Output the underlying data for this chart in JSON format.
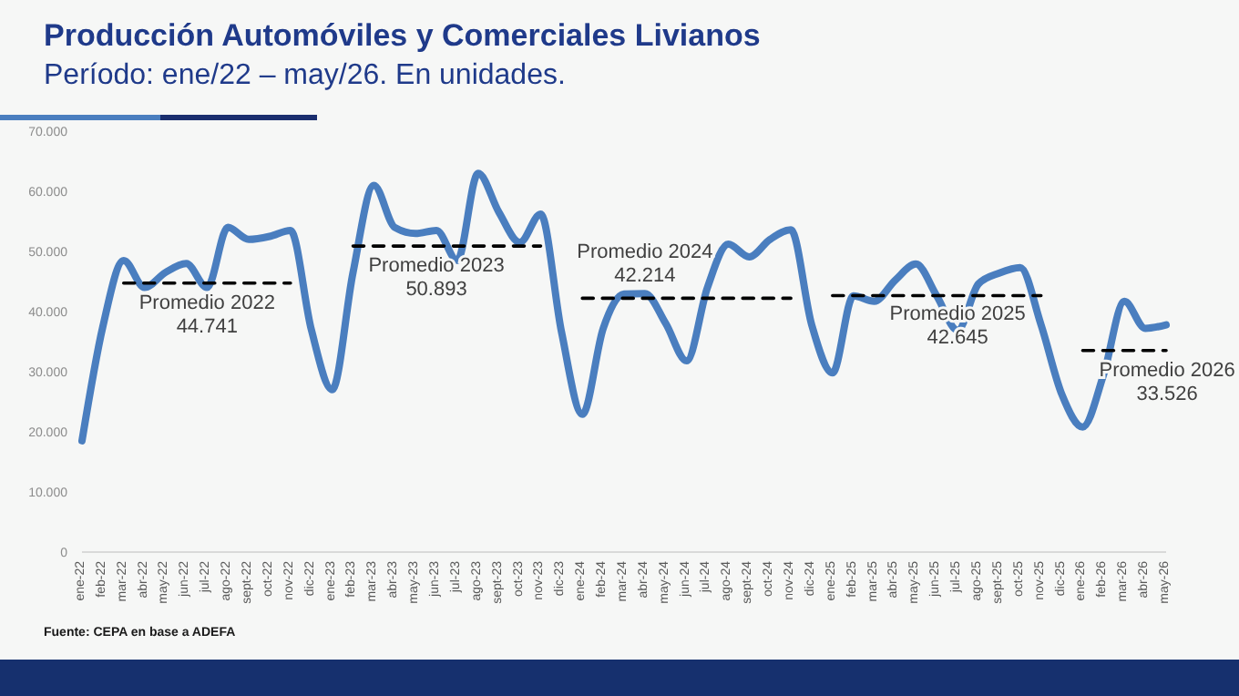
{
  "chart_data": {
    "type": "line",
    "title": "Producción Automóviles y Comerciales Livianos",
    "subtitle": "Período: ene/22 – may/26. En unidades.",
    "categories": [
      "ene-22",
      "feb-22",
      "mar-22",
      "abr-22",
      "may-22",
      "jun-22",
      "jul-22",
      "ago-22",
      "sept-22",
      "oct-22",
      "nov-22",
      "dic-22",
      "ene-23",
      "feb-23",
      "mar-23",
      "abr-23",
      "may-23",
      "jun-23",
      "jul-23",
      "ago-23",
      "sept-23",
      "oct-23",
      "nov-23",
      "dic-23",
      "ene-24",
      "feb-24",
      "mar-24",
      "abr-24",
      "may-24",
      "jun-24",
      "jul-24",
      "ago-24",
      "sept-24",
      "oct-24",
      "nov-24",
      "dic-24",
      "ene-25",
      "feb-25",
      "mar-25",
      "abr-25",
      "may-25",
      "jun-25",
      "jul-25",
      "ago-25",
      "sept-25",
      "oct-25",
      "nov-25",
      "dic-25",
      "ene-26",
      "feb-26",
      "mar-26",
      "abr-26",
      "may-26"
    ],
    "series": [
      {
        "color": "#4a7ebf",
        "values": [
          18500,
          37500,
          48500,
          44000,
          46500,
          48000,
          44000,
          54000,
          52000,
          52500,
          53500,
          37000,
          27000,
          46500,
          61000,
          54000,
          53000,
          53500,
          48500,
          63000,
          56500,
          51500,
          56200,
          36600,
          22900,
          37200,
          42900,
          43000,
          38000,
          31800,
          44000,
          51200,
          49100,
          52000,
          53600,
          37800,
          29800,
          42600,
          41700,
          45200,
          47900,
          42600,
          36900,
          44600,
          46400,
          47300,
          37800,
          26200,
          20800,
          29500,
          41700,
          37200,
          37800
        ]
      },
      {
        "type": "line",
        "name": "Promedio 2022",
        "color": "#000000",
        "line_style": "dashed",
        "values": [
          null,
          null,
          44741,
          44741,
          44741,
          44741,
          44741,
          44741,
          44741,
          44741,
          44741,
          null,
          null,
          null,
          null,
          null,
          null,
          null,
          null,
          null,
          null,
          null,
          null,
          null,
          null,
          null,
          null,
          null,
          null,
          null,
          null,
          null,
          null,
          null,
          null,
          null,
          null,
          null,
          null,
          null,
          null,
          null,
          null,
          null,
          null,
          null,
          null,
          null,
          null,
          null,
          null,
          null,
          null
        ],
        "value_labels": [
          null,
          null,
          null,
          null,
          null,
          null,
          "44.741",
          null,
          null,
          null,
          null,
          null,
          null,
          null,
          null,
          null,
          null,
          null,
          null,
          null,
          null,
          null,
          null,
          null,
          null,
          null,
          null,
          null,
          null,
          null,
          null,
          null,
          null,
          null,
          null,
          null,
          null,
          null,
          null,
          null,
          null,
          null,
          null,
          null,
          null,
          null,
          null,
          null,
          null,
          null,
          null,
          null,
          null
        ]
      },
      {
        "type": "line",
        "name": "Promedio 2023",
        "color": "#000000",
        "line_style": "dashed",
        "values": [
          null,
          null,
          null,
          null,
          null,
          null,
          null,
          null,
          null,
          null,
          null,
          null,
          null,
          50893,
          50893,
          50893,
          50893,
          50893,
          50893,
          50893,
          50893,
          50893,
          50893,
          null,
          null,
          null,
          null,
          null,
          null,
          null,
          null,
          null,
          null,
          null,
          null,
          null,
          null,
          null,
          null,
          null,
          null,
          null,
          null,
          null,
          null,
          null,
          null,
          null,
          null,
          null,
          null,
          null,
          null
        ],
        "value_labels": [
          null,
          null,
          null,
          null,
          null,
          null,
          null,
          null,
          null,
          null,
          null,
          null,
          null,
          null,
          null,
          null,
          null,
          "50.893",
          null,
          null,
          null,
          null,
          null,
          null,
          null,
          null,
          null,
          null,
          null,
          null,
          null,
          null,
          null,
          null,
          null,
          null,
          null,
          null,
          null,
          null,
          null,
          null,
          null,
          null,
          null,
          null,
          null,
          null,
          null,
          null,
          null,
          null,
          null
        ]
      },
      {
        "type": "line",
        "name": "Promedio 2024",
        "color": "#000000",
        "line_style": "dashed",
        "values": [
          null,
          null,
          null,
          null,
          null,
          null,
          null,
          null,
          null,
          null,
          null,
          null,
          null,
          null,
          null,
          null,
          null,
          null,
          null,
          null,
          null,
          null,
          null,
          null,
          42214,
          42214,
          42214,
          42214,
          42214,
          42214,
          42214,
          42214,
          42214,
          42214,
          42214,
          null,
          null,
          null,
          null,
          null,
          null,
          null,
          null,
          null,
          null,
          null,
          null,
          null,
          null,
          null,
          null,
          null,
          null
        ],
        "value_labels": [
          null,
          null,
          null,
          null,
          null,
          null,
          null,
          null,
          null,
          null,
          null,
          null,
          null,
          null,
          null,
          null,
          null,
          null,
          null,
          null,
          null,
          null,
          null,
          null,
          null,
          null,
          null,
          "42.214",
          null,
          null,
          null,
          null,
          null,
          null,
          null,
          null,
          null,
          null,
          null,
          null,
          null,
          null,
          null,
          null,
          null,
          null,
          null,
          null,
          null,
          null,
          null,
          null,
          null
        ]
      },
      {
        "type": "line",
        "name": "Promedio 2025",
        "color": "#000000",
        "line_style": "dashed",
        "values": [
          null,
          null,
          null,
          null,
          null,
          null,
          null,
          null,
          null,
          null,
          null,
          null,
          null,
          null,
          null,
          null,
          null,
          null,
          null,
          null,
          null,
          null,
          null,
          null,
          null,
          null,
          null,
          null,
          null,
          null,
          null,
          null,
          null,
          null,
          null,
          null,
          42645,
          42645,
          42645,
          42645,
          42645,
          42645,
          42645,
          42645,
          42645,
          42645,
          42645,
          null,
          null,
          null,
          null,
          null,
          null
        ],
        "value_labels": [
          null,
          null,
          null,
          null,
          null,
          null,
          null,
          null,
          null,
          null,
          null,
          null,
          null,
          null,
          null,
          null,
          null,
          null,
          null,
          null,
          null,
          null,
          null,
          null,
          null,
          null,
          null,
          null,
          null,
          null,
          null,
          null,
          null,
          null,
          null,
          null,
          null,
          null,
          null,
          null,
          null,
          null,
          "42.645",
          null,
          null,
          null,
          null,
          null,
          null,
          null,
          null,
          null,
          null
        ]
      },
      {
        "type": "line",
        "name": "Promedio 2026",
        "color": "#000000",
        "line_style": "dashed",
        "values": [
          null,
          null,
          null,
          null,
          null,
          null,
          null,
          null,
          null,
          null,
          null,
          null,
          null,
          null,
          null,
          null,
          null,
          null,
          null,
          null,
          null,
          null,
          null,
          null,
          null,
          null,
          null,
          null,
          null,
          null,
          null,
          null,
          null,
          null,
          null,
          null,
          null,
          null,
          null,
          null,
          null,
          null,
          null,
          null,
          null,
          null,
          null,
          null,
          33526,
          33526,
          33526,
          33526,
          33526
        ],
        "value_labels": [
          null,
          null,
          null,
          null,
          null,
          null,
          null,
          null,
          null,
          null,
          null,
          null,
          null,
          null,
          null,
          null,
          null,
          null,
          null,
          null,
          null,
          null,
          null,
          null,
          null,
          null,
          null,
          null,
          null,
          null,
          null,
          null,
          null,
          null,
          null,
          null,
          null,
          null,
          null,
          null,
          null,
          null,
          null,
          null,
          null,
          null,
          null,
          null,
          null,
          null,
          null,
          "33.526",
          null
        ]
      }
    ],
    "ylim": [
      0,
      70000
    ],
    "yticks": [
      {
        "value": 0,
        "label": "0"
      },
      {
        "value": 10000,
        "label": "10.000"
      },
      {
        "value": 20000,
        "label": "20.000"
      },
      {
        "value": 30000,
        "label": "30.000"
      },
      {
        "value": 40000,
        "label": "40.000"
      },
      {
        "value": 50000,
        "label": "50.000"
      },
      {
        "value": 60000,
        "label": "60.000"
      },
      {
        "value": 70000,
        "label": "70.000"
      }
    ],
    "grid": false,
    "legend": false,
    "annotations": [
      "Fuente: CEPA en base a ADEFA"
    ]
  }
}
